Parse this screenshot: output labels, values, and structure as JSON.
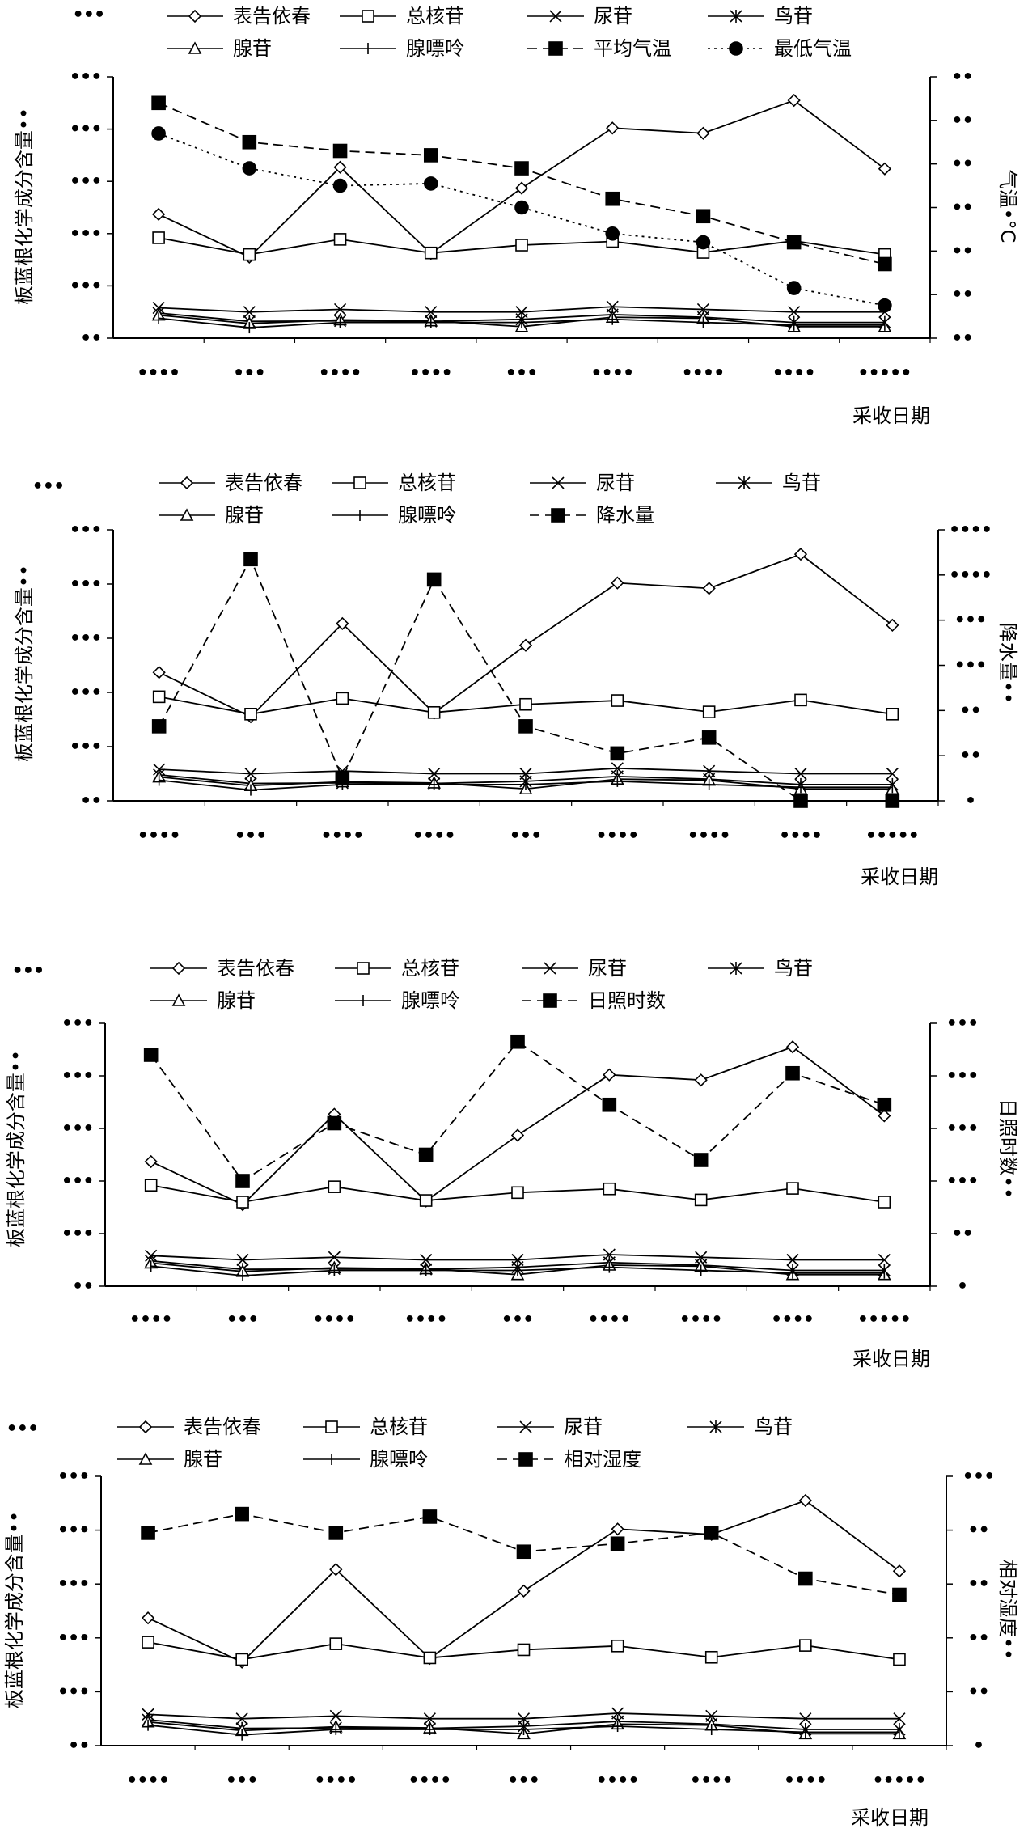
{
  "chart_data": [
    {
      "type": "line",
      "panel_mark": "•••",
      "categories": [
        "••••",
        "•••",
        "••••",
        "••••",
        "•••",
        "••••",
        "••••",
        "••••",
        "•••••"
      ],
      "xlabel": "采收日期",
      "ylabel": "板蓝根化学成分含量••",
      "ylabel2": "气温•°C",
      "yticks": [
        "••",
        "•••",
        "•••",
        "•••",
        "•••",
        "•••"
      ],
      "yticks2": [
        "••",
        "••",
        "••",
        "••",
        "••",
        "••",
        "••"
      ],
      "ylim": [
        0,
        5
      ],
      "y2lim": [
        0,
        6
      ],
      "legend": [
        "表告依春",
        "总核苷",
        "尿苷",
        "鸟苷",
        "腺苷",
        "腺嘌呤",
        "平均气温",
        "最低气温"
      ],
      "series": [
        {
          "name": "表告依春",
          "axis": "left",
          "marker": "diamond",
          "dash": "solid",
          "values": [
            2.37,
            1.55,
            3.27,
            1.62,
            2.87,
            4.02,
            3.92,
            4.55,
            3.24
          ]
        },
        {
          "name": "总核苷",
          "axis": "left",
          "marker": "square",
          "dash": "solid",
          "values": [
            1.92,
            1.6,
            1.89,
            1.63,
            1.78,
            1.85,
            1.64,
            1.86,
            1.6
          ]
        },
        {
          "name": "尿苷",
          "axis": "left",
          "marker": "x",
          "dash": "solid",
          "values": [
            0.58,
            0.5,
            0.55,
            0.5,
            0.5,
            0.6,
            0.55,
            0.5,
            0.5
          ]
        },
        {
          "name": "鸟苷",
          "axis": "left",
          "marker": "asterisk",
          "dash": "solid",
          "values": [
            0.48,
            0.32,
            0.33,
            0.32,
            0.36,
            0.45,
            0.4,
            0.3,
            0.3
          ]
        },
        {
          "name": "腺苷",
          "axis": "left",
          "marker": "triangle",
          "dash": "solid",
          "values": [
            0.44,
            0.28,
            0.35,
            0.33,
            0.22,
            0.4,
            0.38,
            0.22,
            0.22
          ]
        },
        {
          "name": "腺嘌呤",
          "axis": "left",
          "marker": "plus",
          "dash": "solid",
          "values": [
            0.38,
            0.2,
            0.3,
            0.3,
            0.3,
            0.36,
            0.3,
            0.25,
            0.25
          ]
        },
        {
          "name": "平均气温",
          "axis": "right",
          "marker": "filled-square",
          "dash": "dash",
          "values": [
            5.4,
            4.5,
            4.3,
            4.2,
            3.9,
            3.2,
            2.8,
            2.2,
            1.7
          ]
        },
        {
          "name": "最低气温",
          "axis": "right",
          "marker": "filled-circle",
          "dash": "dot",
          "values": [
            4.7,
            3.9,
            3.5,
            3.55,
            3.0,
            2.4,
            2.2,
            1.15,
            0.75
          ]
        }
      ]
    },
    {
      "type": "line",
      "panel_mark": "•••",
      "categories": [
        "••••",
        "•••",
        "••••",
        "••••",
        "•••",
        "••••",
        "••••",
        "••••",
        "•••••"
      ],
      "xlabel": "采收日期",
      "ylabel": "板蓝根化学成分含量••",
      "ylabel2": "降水量••",
      "yticks": [
        "••",
        "•••",
        "•••",
        "•••",
        "•••",
        "•••"
      ],
      "yticks2": [
        "•",
        "••",
        "••",
        "•••",
        "•••",
        "••••",
        "••••"
      ],
      "ylim": [
        0,
        5
      ],
      "y2lim": [
        0,
        6
      ],
      "legend": [
        "表告依春",
        "总核苷",
        "尿苷",
        "鸟苷",
        "腺苷",
        "腺嘌呤",
        "降水量"
      ],
      "series": [
        {
          "name": "表告依春",
          "axis": "left",
          "marker": "diamond",
          "dash": "solid",
          "values": [
            2.37,
            1.55,
            3.27,
            1.62,
            2.87,
            4.02,
            3.92,
            4.55,
            3.24
          ]
        },
        {
          "name": "总核苷",
          "axis": "left",
          "marker": "square",
          "dash": "solid",
          "values": [
            1.92,
            1.6,
            1.89,
            1.63,
            1.78,
            1.85,
            1.64,
            1.86,
            1.6
          ]
        },
        {
          "name": "尿苷",
          "axis": "left",
          "marker": "x",
          "dash": "solid",
          "values": [
            0.58,
            0.5,
            0.55,
            0.5,
            0.5,
            0.6,
            0.55,
            0.5,
            0.5
          ]
        },
        {
          "name": "鸟苷",
          "axis": "left",
          "marker": "asterisk",
          "dash": "solid",
          "values": [
            0.48,
            0.32,
            0.33,
            0.32,
            0.36,
            0.45,
            0.4,
            0.3,
            0.3
          ]
        },
        {
          "name": "腺苷",
          "axis": "left",
          "marker": "triangle",
          "dash": "solid",
          "values": [
            0.44,
            0.28,
            0.35,
            0.33,
            0.22,
            0.4,
            0.38,
            0.22,
            0.22
          ]
        },
        {
          "name": "腺嘌呤",
          "axis": "left",
          "marker": "plus",
          "dash": "solid",
          "values": [
            0.38,
            0.2,
            0.3,
            0.3,
            0.3,
            0.36,
            0.3,
            0.25,
            0.25
          ]
        },
        {
          "name": "降水量",
          "axis": "right",
          "marker": "filled-square",
          "dash": "dash",
          "values": [
            1.65,
            5.35,
            0.5,
            4.9,
            1.65,
            1.05,
            1.4,
            0.0,
            0.0
          ]
        }
      ]
    },
    {
      "type": "line",
      "panel_mark": "•••",
      "categories": [
        "••••",
        "•••",
        "••••",
        "••••",
        "•••",
        "••••",
        "••••",
        "••••",
        "•••••"
      ],
      "xlabel": "采收日期",
      "ylabel": "板蓝根化学成分含量••",
      "ylabel2": "日照时数••",
      "yticks": [
        "••",
        "•••",
        "•••",
        "•••",
        "•••",
        "•••"
      ],
      "yticks2": [
        "•",
        "••",
        "•••",
        "•••",
        "•••",
        "•••"
      ],
      "ylim": [
        0,
        5
      ],
      "y2lim": [
        0,
        5
      ],
      "legend": [
        "表告依春",
        "总核苷",
        "尿苷",
        "鸟苷",
        "腺苷",
        "腺嘌呤",
        "日照时数"
      ],
      "series": [
        {
          "name": "表告依春",
          "axis": "left",
          "marker": "diamond",
          "dash": "solid",
          "values": [
            2.37,
            1.55,
            3.27,
            1.62,
            2.87,
            4.02,
            3.92,
            4.55,
            3.24
          ]
        },
        {
          "name": "总核苷",
          "axis": "left",
          "marker": "square",
          "dash": "solid",
          "values": [
            1.92,
            1.6,
            1.89,
            1.63,
            1.78,
            1.85,
            1.64,
            1.86,
            1.6
          ]
        },
        {
          "name": "尿苷",
          "axis": "left",
          "marker": "x",
          "dash": "solid",
          "values": [
            0.58,
            0.5,
            0.55,
            0.5,
            0.5,
            0.6,
            0.55,
            0.5,
            0.5
          ]
        },
        {
          "name": "鸟苷",
          "axis": "left",
          "marker": "asterisk",
          "dash": "solid",
          "values": [
            0.48,
            0.32,
            0.33,
            0.32,
            0.36,
            0.45,
            0.4,
            0.3,
            0.3
          ]
        },
        {
          "name": "腺苷",
          "axis": "left",
          "marker": "triangle",
          "dash": "solid",
          "values": [
            0.44,
            0.28,
            0.35,
            0.33,
            0.22,
            0.4,
            0.38,
            0.22,
            0.22
          ]
        },
        {
          "name": "腺嘌呤",
          "axis": "left",
          "marker": "plus",
          "dash": "solid",
          "values": [
            0.38,
            0.2,
            0.3,
            0.3,
            0.3,
            0.36,
            0.3,
            0.25,
            0.25
          ]
        },
        {
          "name": "日照时数",
          "axis": "right",
          "marker": "filled-square",
          "dash": "dash",
          "values": [
            4.4,
            2.0,
            3.1,
            2.5,
            4.65,
            3.45,
            2.4,
            4.05,
            3.45
          ]
        }
      ]
    },
    {
      "type": "line",
      "panel_mark": "•••",
      "categories": [
        "••••",
        "•••",
        "••••",
        "••••",
        "•••",
        "••••",
        "••••",
        "••••",
        "•••••"
      ],
      "xlabel": "采收日期",
      "ylabel": "板蓝根化学成分含量••",
      "ylabel2": "相对湿度••",
      "yticks": [
        "••",
        "•••",
        "•••",
        "•••",
        "•••",
        "•••"
      ],
      "yticks2": [
        "•",
        "••",
        "••",
        "••",
        "••",
        "•••"
      ],
      "ylim": [
        0,
        5
      ],
      "y2lim": [
        0,
        5
      ],
      "legend": [
        "表告依春",
        "总核苷",
        "尿苷",
        "鸟苷",
        "腺苷",
        "腺嘌呤",
        "相对湿度"
      ],
      "series": [
        {
          "name": "表告依春",
          "axis": "left",
          "marker": "diamond",
          "dash": "solid",
          "values": [
            2.37,
            1.55,
            3.27,
            1.62,
            2.87,
            4.02,
            3.92,
            4.55,
            3.24
          ]
        },
        {
          "name": "总核苷",
          "axis": "left",
          "marker": "square",
          "dash": "solid",
          "values": [
            1.92,
            1.6,
            1.89,
            1.63,
            1.78,
            1.85,
            1.64,
            1.86,
            1.6
          ]
        },
        {
          "name": "尿苷",
          "axis": "left",
          "marker": "x",
          "dash": "solid",
          "values": [
            0.58,
            0.5,
            0.55,
            0.5,
            0.5,
            0.6,
            0.55,
            0.5,
            0.5
          ]
        },
        {
          "name": "鸟苷",
          "axis": "left",
          "marker": "asterisk",
          "dash": "solid",
          "values": [
            0.48,
            0.32,
            0.33,
            0.32,
            0.36,
            0.45,
            0.4,
            0.3,
            0.3
          ]
        },
        {
          "name": "腺苷",
          "axis": "left",
          "marker": "triangle",
          "dash": "solid",
          "values": [
            0.44,
            0.28,
            0.35,
            0.33,
            0.22,
            0.4,
            0.38,
            0.22,
            0.22
          ]
        },
        {
          "name": "腺嘌呤",
          "axis": "left",
          "marker": "plus",
          "dash": "solid",
          "values": [
            0.38,
            0.2,
            0.3,
            0.3,
            0.3,
            0.36,
            0.3,
            0.25,
            0.25
          ]
        },
        {
          "name": "相对湿度",
          "axis": "right",
          "marker": "filled-square",
          "dash": "dash",
          "values": [
            3.95,
            4.3,
            3.95,
            4.25,
            3.6,
            3.75,
            3.95,
            3.1,
            2.8
          ]
        }
      ]
    }
  ]
}
